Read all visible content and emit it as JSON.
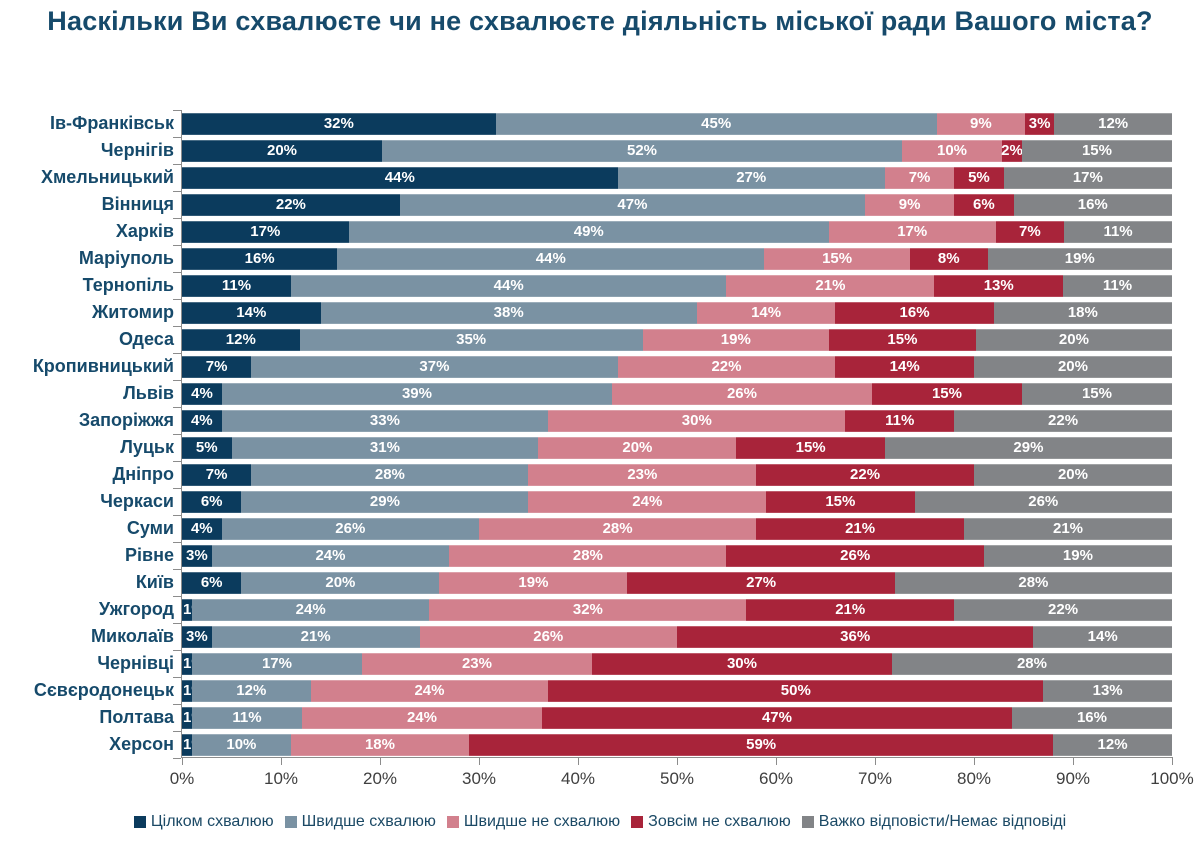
{
  "title": "Наскільки Ви схвалюєте чи не схвалюєте діяльність міської ради Вашого міста?",
  "chart_data": {
    "type": "bar",
    "stacked": true,
    "orientation": "horizontal",
    "value_suffix": "%",
    "title": "Наскільки Ви схвалюєте чи не схвалюєте діяльність міської ради Вашого міста?",
    "xlabel": "",
    "ylabel": "",
    "x_axis": {
      "min": 0,
      "max": 100,
      "tick_labels": [
        "0%",
        "10%",
        "20%",
        "30%",
        "40%",
        "50%",
        "60%",
        "70%",
        "80%",
        "90%",
        "100%"
      ]
    },
    "legend_position": "bottom",
    "grid": false,
    "categories": [
      "Ів-Франківськ",
      "Чернігів",
      "Хмельницький",
      "Вінниця",
      "Харків",
      "Маріуполь",
      "Тернопіль",
      "Житомир",
      "Одеса",
      "Кропивницький",
      "Львів",
      "Запоріжжя",
      "Луцьк",
      "Дніпро",
      "Черкаси",
      "Суми",
      "Рівне",
      "Київ",
      "Ужгород",
      "Миколаїв",
      "Чернівці",
      "Сєвєродонецьк",
      "Полтава",
      "Херсон"
    ],
    "series": [
      {
        "name": "Цілком схвалюю",
        "color": "#0B3B5D",
        "values": [
          32,
          20,
          44,
          22,
          17,
          16,
          11,
          14,
          12,
          7,
          4,
          4,
          5,
          7,
          6,
          4,
          3,
          6,
          1,
          3,
          1,
          1,
          1,
          1
        ]
      },
      {
        "name": "Швидше схвалюю",
        "color": "#7A92A3",
        "values": [
          45,
          52,
          27,
          47,
          49,
          44,
          44,
          38,
          35,
          37,
          39,
          33,
          31,
          28,
          29,
          26,
          24,
          20,
          24,
          21,
          17,
          12,
          11,
          10
        ]
      },
      {
        "name": "Швидше не схвалюю",
        "color": "#D2808D",
        "values": [
          9,
          10,
          7,
          9,
          17,
          15,
          21,
          14,
          19,
          22,
          26,
          30,
          20,
          23,
          24,
          28,
          28,
          19,
          32,
          26,
          23,
          24,
          24,
          18
        ]
      },
      {
        "name": "Зовсім не схвалюю",
        "color": "#A8243A",
        "values": [
          3,
          2,
          5,
          6,
          7,
          8,
          13,
          16,
          15,
          14,
          15,
          11,
          15,
          22,
          15,
          21,
          26,
          27,
          21,
          36,
          30,
          50,
          47,
          59
        ]
      },
      {
        "name": "Важко відповісти/Немає відповіді",
        "color": "#828487",
        "values": [
          12,
          15,
          17,
          16,
          11,
          19,
          11,
          18,
          20,
          20,
          15,
          22,
          29,
          20,
          26,
          21,
          19,
          28,
          22,
          14,
          28,
          13,
          16,
          12
        ]
      }
    ]
  },
  "axis_colors": {
    "line": "#8C8C8C",
    "tick_label": "#3F3F3F"
  },
  "text_colors": {
    "title": "#164A6B",
    "category": "#164A6B",
    "legend": "#1B4965",
    "bar_label": "#FFFFFF"
  }
}
